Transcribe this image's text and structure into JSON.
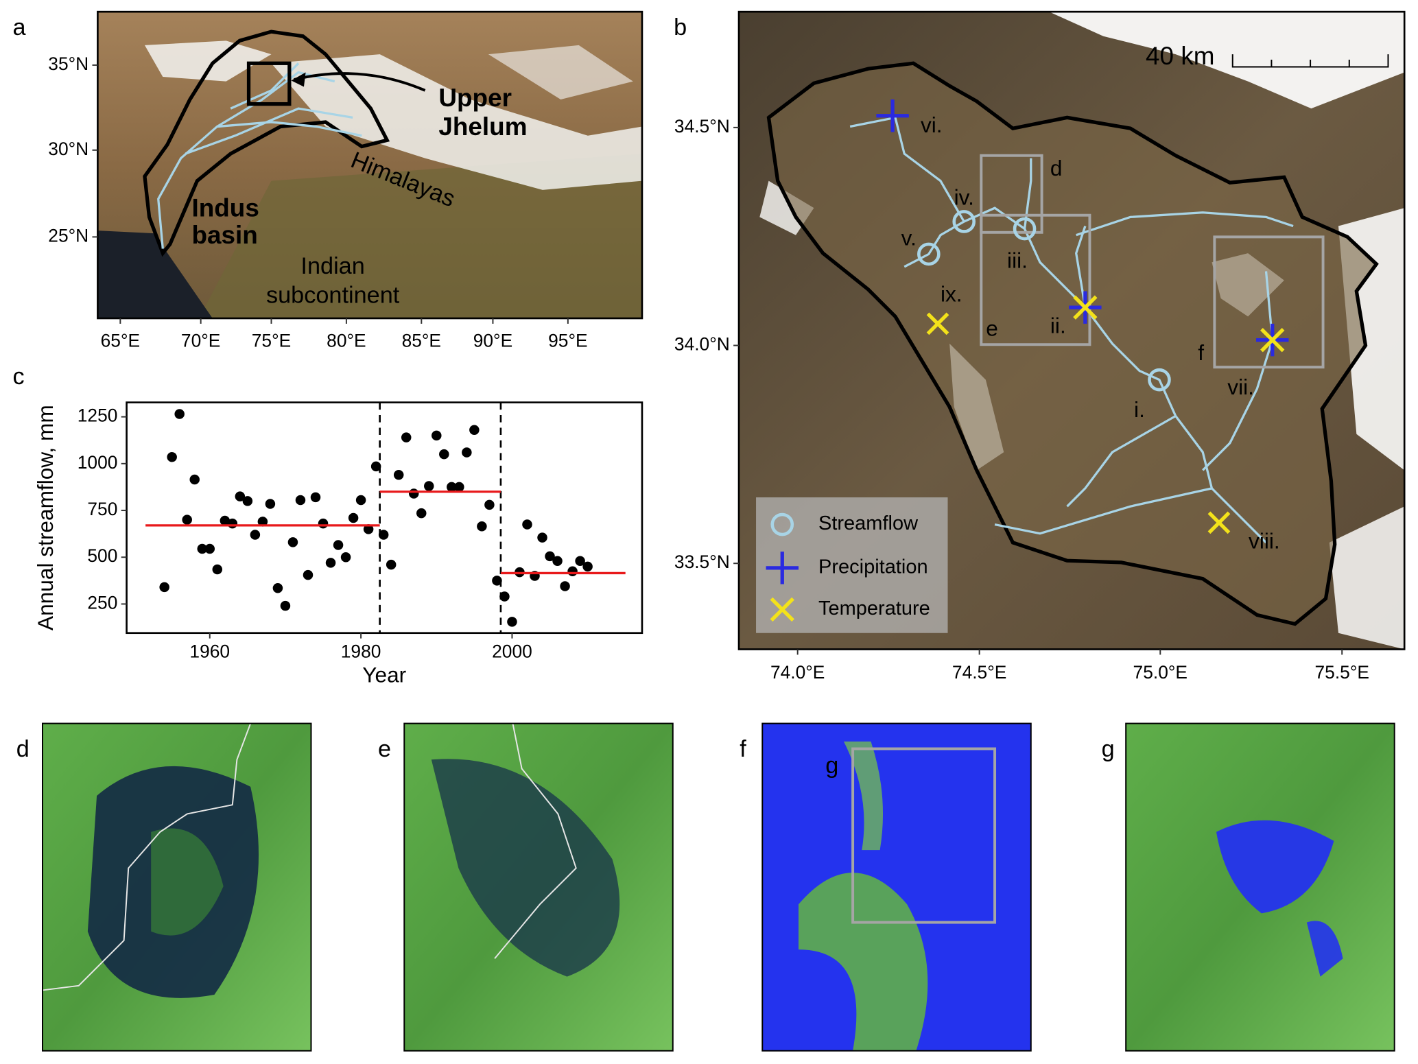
{
  "map_a": {
    "label": "a",
    "xticks": [
      "65°E",
      "70°E",
      "75°E",
      "80°E",
      "85°E",
      "90°E",
      "95°E"
    ],
    "yticks": [
      "35°N",
      "30°N",
      "25°N"
    ],
    "annotations": {
      "upper_jhelum": [
        "Upper",
        "Jhelum"
      ],
      "indus_basin": [
        "Indus",
        "basin"
      ],
      "himalayas": "Himalayas",
      "subcontinent": [
        "Indian",
        "subcontinent"
      ]
    }
  },
  "map_b": {
    "label": "b",
    "xticks": [
      "74.0°E",
      "74.5°E",
      "75.0°E",
      "75.5°E"
    ],
    "yticks": [
      "34.5°N",
      "34.0°N",
      "33.5°N"
    ],
    "scale_bar": "40 km",
    "sites": [
      "i.",
      "ii.",
      "iii.",
      "iv.",
      "v.",
      "vi.",
      "vii.",
      "viii.",
      "ix."
    ],
    "boxes": [
      "d",
      "e",
      "f"
    ],
    "legend": [
      "Streamflow",
      "Precipitation",
      "Temperature"
    ]
  },
  "chart_data": {
    "type": "scatter",
    "label": "c",
    "xlabel": "Year",
    "ylabel": "Annual streamflow, mm",
    "x": [
      1954,
      1955,
      1956,
      1957,
      1958,
      1959,
      1960,
      1961,
      1962,
      1963,
      1964,
      1965,
      1966,
      1967,
      1968,
      1969,
      1970,
      1971,
      1972,
      1973,
      1974,
      1975,
      1976,
      1977,
      1978,
      1979,
      1980,
      1981,
      1982,
      1983,
      1984,
      1985,
      1986,
      1987,
      1988,
      1989,
      1990,
      1991,
      1992,
      1993,
      1994,
      1995,
      1996,
      1997,
      1998,
      1999,
      2000,
      2001,
      2002,
      2003,
      2004,
      2005,
      2006,
      2007,
      2008,
      2009,
      2010
    ],
    "values": [
      340,
      1035,
      1265,
      700,
      915,
      545,
      545,
      435,
      695,
      680,
      825,
      800,
      620,
      690,
      785,
      335,
      240,
      580,
      805,
      405,
      820,
      680,
      470,
      565,
      500,
      710,
      805,
      650,
      985,
      620,
      460,
      940,
      1140,
      840,
      735,
      880,
      1150,
      1050,
      875,
      875,
      1060,
      1180,
      665,
      780,
      375,
      290,
      155,
      420,
      675,
      400,
      605,
      505,
      480,
      345,
      425,
      480,
      450
    ],
    "color": "#000000",
    "segments": [
      {
        "start": 1951.5,
        "end": 1982.5,
        "value": 670
      },
      {
        "start": 1982.5,
        "end": 1998.5,
        "value": 850
      },
      {
        "start": 1998.5,
        "end": 2015,
        "value": 415
      }
    ],
    "segment_color": "#e8191b",
    "breakpoints": [
      1982.5,
      1998.5
    ],
    "xlim": [
      1949,
      2017.2
    ],
    "ylim": [
      95,
      1327
    ],
    "xticks": [
      1960,
      1980,
      2000
    ],
    "yticks": [
      250,
      500,
      750,
      1000,
      1250
    ]
  },
  "images": [
    {
      "label": "d"
    },
    {
      "label": "e"
    },
    {
      "label": "f",
      "inset": "g"
    },
    {
      "label": "g"
    }
  ]
}
